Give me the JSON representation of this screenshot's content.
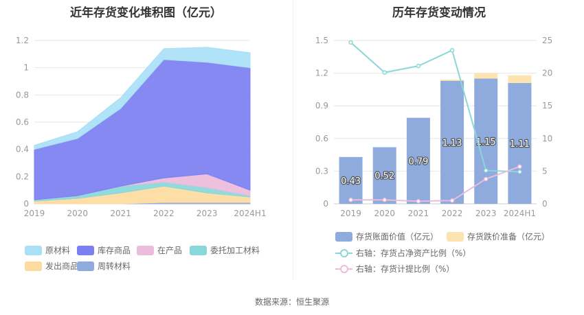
{
  "source": "数据来源：恒生聚源",
  "charts": {
    "left": {
      "title": "近年存货变化堆积图（亿元）",
      "legend": [
        {
          "label": "原材料",
          "color": "#a9dff7"
        },
        {
          "label": "库存商品",
          "color": "#7b7ff0"
        },
        {
          "label": "在产品",
          "color": "#ecbcdb"
        },
        {
          "label": "委托加工材料",
          "color": "#8ad7d9"
        },
        {
          "label": "发出商品",
          "color": "#fddba0"
        },
        {
          "label": "周转材料",
          "color": "#8faadc"
        }
      ]
    },
    "right": {
      "title": "历年存货变动情况",
      "legend": [
        {
          "label": "存货账面价值（亿元）",
          "color": "#8faadc",
          "kind": "bar"
        },
        {
          "label": "存货跌价准备（亿元）",
          "color": "#fde3b0",
          "kind": "bar"
        },
        {
          "label": "右轴：存货占净资产比例（%）",
          "color": "#8ad7d9",
          "kind": "line"
        },
        {
          "label": "右轴：存货计提比例（%）",
          "color": "#ecbcdb",
          "kind": "line"
        }
      ]
    }
  },
  "chart_data": [
    {
      "type": "area",
      "title": "近年存货变化堆积图（亿元）",
      "stacked": true,
      "categories": [
        "2019",
        "2020",
        "2021",
        "2022",
        "2023",
        "2024H1"
      ],
      "ylim": [
        0,
        1.2
      ],
      "yticks": [
        "0",
        "0.2",
        "0.4",
        "0.6",
        "0.8",
        "1",
        "1.2"
      ],
      "grid": true,
      "legend_position": "bottom",
      "series": [
        {
          "name": "周转材料",
          "color": "#8faadc",
          "values": [
            0.0,
            0.0,
            0.0,
            0.01,
            0.01,
            0.01
          ]
        },
        {
          "name": "发出商品",
          "color": "#fddba0",
          "values": [
            0.02,
            0.04,
            0.08,
            0.12,
            0.07,
            0.04
          ]
        },
        {
          "name": "委托加工材料",
          "color": "#8ad7d9",
          "values": [
            0.01,
            0.02,
            0.05,
            0.03,
            0.04,
            0.01
          ]
        },
        {
          "name": "在产品",
          "color": "#ecbcdb",
          "values": [
            0.0,
            0.0,
            0.0,
            0.03,
            0.1,
            0.04
          ]
        },
        {
          "name": "库存商品",
          "color": "#7b7ff0",
          "values": [
            0.37,
            0.42,
            0.57,
            0.87,
            0.82,
            0.9
          ]
        },
        {
          "name": "原材料",
          "color": "#a9dff7",
          "values": [
            0.03,
            0.05,
            0.08,
            0.08,
            0.11,
            0.11
          ]
        }
      ]
    },
    {
      "type": "bar",
      "title": "历年存货变动情况",
      "stacked": true,
      "categories": [
        "2019",
        "2020",
        "2021",
        "2022",
        "2023",
        "2024H1"
      ],
      "ylim": [
        0,
        1.5
      ],
      "yticks": [
        "0",
        "0.3",
        "0.6",
        "0.9",
        "1.2",
        "1.5"
      ],
      "y2lim": [
        0,
        25
      ],
      "y2ticks": [
        "0",
        "5",
        "10",
        "15",
        "20",
        "25"
      ],
      "grid": true,
      "legend_position": "bottom",
      "series": [
        {
          "name": "存货账面价值（亿元）",
          "type": "bar",
          "axis": "left",
          "color": "#8faadc",
          "values": [
            0.43,
            0.52,
            0.79,
            1.13,
            1.15,
            1.11
          ],
          "labels": [
            "0.43",
            "0.52",
            "0.79",
            "1.13",
            "1.15",
            "1.11"
          ]
        },
        {
          "name": "存货跌价准备（亿元）",
          "type": "bar",
          "axis": "left",
          "color": "#fde3b0",
          "values": [
            0.0,
            0.0,
            0.0,
            0.01,
            0.05,
            0.07
          ]
        },
        {
          "name": "右轴：存货占净资产比例（%）",
          "type": "line",
          "axis": "right",
          "color": "#8ad7d9",
          "values": [
            24.7,
            20.1,
            21.1,
            23.5,
            5.1,
            4.9
          ]
        },
        {
          "name": "右轴：存货计提比例（%）",
          "type": "line",
          "axis": "right",
          "color": "#ecbcdb",
          "values": [
            0.6,
            0.6,
            0.4,
            0.5,
            3.8,
            5.7
          ]
        }
      ]
    }
  ]
}
